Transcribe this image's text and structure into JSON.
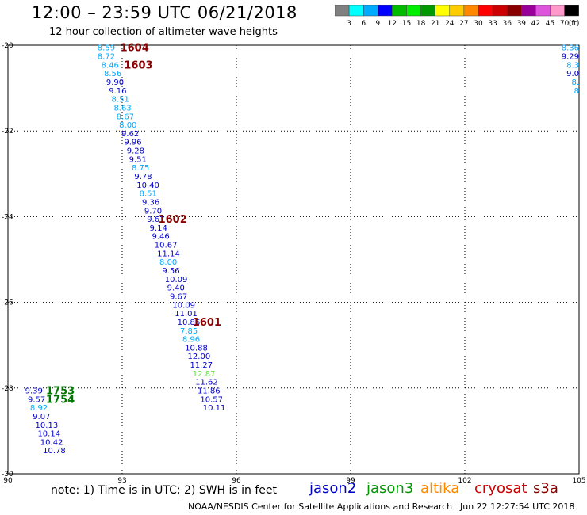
{
  "header": {
    "title": "12:00 – 23:59 UTC 06/21/2018",
    "subtitle": "12 hour collection of altimeter wave heights"
  },
  "colorbar": {
    "colors": [
      "#808080",
      "#00ffff",
      "#00aaff",
      "#0000ff",
      "#00bb00",
      "#00ee00",
      "#009900",
      "#ffff00",
      "#ffcc00",
      "#ff8800",
      "#ff0000",
      "#cc0000",
      "#880000",
      "#990099",
      "#dd55dd",
      "#ff99cc",
      "#000000"
    ],
    "labels": [
      "3",
      "6",
      "9",
      "12",
      "15",
      "18",
      "21",
      "24",
      "27",
      "30",
      "33",
      "36",
      "39",
      "42",
      "45",
      "70"
    ],
    "unit": "(ft)"
  },
  "footer": {
    "note": "note:  1) Time is in UTC;  2) SWH is in feet",
    "satellites": [
      {
        "name": "jason2",
        "color": "#0000cc"
      },
      {
        "name": "jason3",
        "color": "#009900"
      },
      {
        "name": "altika",
        "color": "#ff8800"
      },
      {
        "name": "cryosat",
        "color": "#cc0000"
      },
      {
        "name": "s3a",
        "color": "#880000"
      }
    ],
    "credit": "NOAA/NESDIS Center for Satellite Applications and Research",
    "timestamp": "Jun 22 12:27:54 UTC 2018"
  },
  "chart_data": {
    "type": "scatter",
    "title": "12:00 – 23:59 UTC 06/21/2018",
    "subtitle": "12 hour collection of altimeter wave heights",
    "xlim": [
      90,
      105
    ],
    "ylim": [
      -30,
      -20
    ],
    "grid": true,
    "x_ticks": [
      90,
      93,
      96,
      99,
      102,
      105
    ],
    "y_ticks": [
      -20,
      -22,
      -24,
      -26,
      -28,
      -30
    ],
    "legend": "bottom",
    "series": [
      {
        "color": "#0000cc",
        "points": [
          {
            "x": 92.35,
            "y": -20.05,
            "v": "8.59",
            "c": "#00aaff"
          },
          {
            "x": 92.35,
            "y": -20.25,
            "v": "8.72",
            "c": "#00aaff"
          },
          {
            "x": 92.45,
            "y": -20.45,
            "v": "8.46",
            "c": "#00aaff"
          },
          {
            "x": 92.52,
            "y": -20.65,
            "v": "8.56",
            "c": "#00aaff"
          },
          {
            "x": 92.58,
            "y": -20.85,
            "v": "9.90",
            "c": "#0000cc"
          },
          {
            "x": 92.65,
            "y": -21.05,
            "v": "9.16",
            "c": "#0000cc"
          },
          {
            "x": 92.72,
            "y": -21.25,
            "v": "8.51",
            "c": "#00aaff"
          },
          {
            "x": 92.78,
            "y": -21.45,
            "v": "8.63",
            "c": "#00aaff"
          },
          {
            "x": 92.85,
            "y": -21.65,
            "v": "8.67",
            "c": "#00aaff"
          },
          {
            "x": 92.92,
            "y": -21.85,
            "v": "8.00",
            "c": "#00aaff"
          },
          {
            "x": 92.98,
            "y": -22.05,
            "v": "9.62",
            "c": "#0000cc"
          },
          {
            "x": 93.05,
            "y": -22.25,
            "v": "9.96",
            "c": "#0000cc"
          },
          {
            "x": 93.12,
            "y": -22.45,
            "v": "9.28",
            "c": "#0000cc"
          },
          {
            "x": 93.18,
            "y": -22.65,
            "v": "9.51",
            "c": "#0000cc"
          },
          {
            "x": 93.25,
            "y": -22.85,
            "v": "8.75",
            "c": "#00aaff"
          },
          {
            "x": 93.32,
            "y": -23.05,
            "v": "9.78",
            "c": "#0000cc"
          },
          {
            "x": 93.38,
            "y": -23.25,
            "v": "10.40",
            "c": "#0000cc"
          },
          {
            "x": 93.45,
            "y": -23.45,
            "v": "8.51",
            "c": "#00aaff"
          },
          {
            "x": 93.52,
            "y": -23.65,
            "v": "9.36",
            "c": "#0000cc"
          },
          {
            "x": 93.58,
            "y": -23.85,
            "v": "9.70",
            "c": "#0000cc"
          },
          {
            "x": 93.65,
            "y": -24.05,
            "v": "9.67",
            "c": "#0000cc"
          },
          {
            "x": 93.72,
            "y": -24.25,
            "v": "9.14",
            "c": "#0000cc"
          },
          {
            "x": 93.78,
            "y": -24.45,
            "v": "9.46",
            "c": "#0000cc"
          },
          {
            "x": 93.85,
            "y": -24.65,
            "v": "10.67",
            "c": "#0000cc"
          },
          {
            "x": 93.92,
            "y": -24.85,
            "v": "11.14",
            "c": "#0000cc"
          },
          {
            "x": 93.98,
            "y": -25.05,
            "v": "8.00",
            "c": "#00aaff"
          },
          {
            "x": 94.05,
            "y": -25.25,
            "v": "9.56",
            "c": "#0000cc"
          },
          {
            "x": 94.12,
            "y": -25.45,
            "v": "10.09",
            "c": "#0000cc"
          },
          {
            "x": 94.18,
            "y": -25.65,
            "v": "9.40",
            "c": "#0000cc"
          },
          {
            "x": 94.25,
            "y": -25.85,
            "v": "9.67",
            "c": "#0000cc"
          },
          {
            "x": 94.32,
            "y": -26.05,
            "v": "10.09",
            "c": "#0000cc"
          },
          {
            "x": 94.38,
            "y": -26.25,
            "v": "11.01",
            "c": "#0000cc"
          },
          {
            "x": 94.45,
            "y": -26.45,
            "v": "10.86",
            "c": "#0000cc"
          },
          {
            "x": 94.52,
            "y": -26.65,
            "v": "7.85",
            "c": "#00aaff"
          },
          {
            "x": 94.58,
            "y": -26.85,
            "v": "8.96",
            "c": "#00aaff"
          },
          {
            "x": 94.65,
            "y": -27.05,
            "v": "10.88",
            "c": "#0000cc"
          },
          {
            "x": 94.72,
            "y": -27.25,
            "v": "12.00",
            "c": "#0000cc"
          },
          {
            "x": 94.78,
            "y": -27.45,
            "v": "11.27",
            "c": "#0000cc"
          },
          {
            "x": 94.85,
            "y": -27.65,
            "v": "12.87",
            "c": "#66dd44"
          },
          {
            "x": 94.92,
            "y": -27.85,
            "v": "11.62",
            "c": "#0000cc"
          },
          {
            "x": 94.98,
            "y": -28.05,
            "v": "11.86",
            "c": "#0000cc"
          },
          {
            "x": 95.05,
            "y": -28.25,
            "v": "10.57",
            "c": "#0000cc"
          },
          {
            "x": 95.12,
            "y": -28.45,
            "v": "10.11",
            "c": "#0000cc"
          }
        ]
      },
      {
        "color": "#0000cc",
        "points": [
          {
            "x": 90.45,
            "y": -28.05,
            "v": "9.39",
            "c": "#0000cc"
          },
          {
            "x": 90.52,
            "y": -28.25,
            "v": "9.57",
            "c": "#0000cc"
          },
          {
            "x": 90.58,
            "y": -28.45,
            "v": "8.92",
            "c": "#00aaff"
          },
          {
            "x": 90.65,
            "y": -28.65,
            "v": "9.07",
            "c": "#0000cc"
          },
          {
            "x": 90.72,
            "y": -28.85,
            "v": "10.13",
            "c": "#0000cc"
          },
          {
            "x": 90.78,
            "y": -29.05,
            "v": "10.14",
            "c": "#0000cc"
          },
          {
            "x": 90.85,
            "y": -29.25,
            "v": "10.42",
            "c": "#0000cc"
          },
          {
            "x": 90.92,
            "y": -29.45,
            "v": "10.78",
            "c": "#0000cc"
          }
        ]
      },
      {
        "color": "#0000cc",
        "points": [
          {
            "x": 105.0,
            "y": -20.05,
            "v": "8.36",
            "c": "#00aaff"
          },
          {
            "x": 105.0,
            "y": -20.25,
            "v": "9.29",
            "c": "#0000cc"
          },
          {
            "x": 105.0,
            "y": -20.45,
            "v": "8.3",
            "c": "#00aaff"
          },
          {
            "x": 105.0,
            "y": -20.65,
            "v": "9.0",
            "c": "#0000cc"
          },
          {
            "x": 105.0,
            "y": -20.85,
            "v": "8.",
            "c": "#00aaff"
          },
          {
            "x": 105.0,
            "y": -21.05,
            "v": "8",
            "c": "#00aaff"
          },
          {
            "x": 105.0,
            "y": -21.25,
            "v": "",
            "c": "#00aaff"
          }
        ]
      }
    ],
    "time_labels": [
      {
        "x": 92.95,
        "y": -20.05,
        "text": "1604",
        "color": "#880000"
      },
      {
        "x": 93.05,
        "y": -20.45,
        "text": "1603",
        "color": "#880000"
      },
      {
        "x": 93.95,
        "y": -24.05,
        "text": "1602",
        "color": "#880000"
      },
      {
        "x": 94.85,
        "y": -26.45,
        "text": "1601",
        "color": "#880000"
      },
      {
        "x": 91.0,
        "y": -28.05,
        "text": "1753",
        "color": "#007700"
      },
      {
        "x": 91.0,
        "y": -28.25,
        "text": "1754",
        "color": "#007700"
      }
    ]
  }
}
